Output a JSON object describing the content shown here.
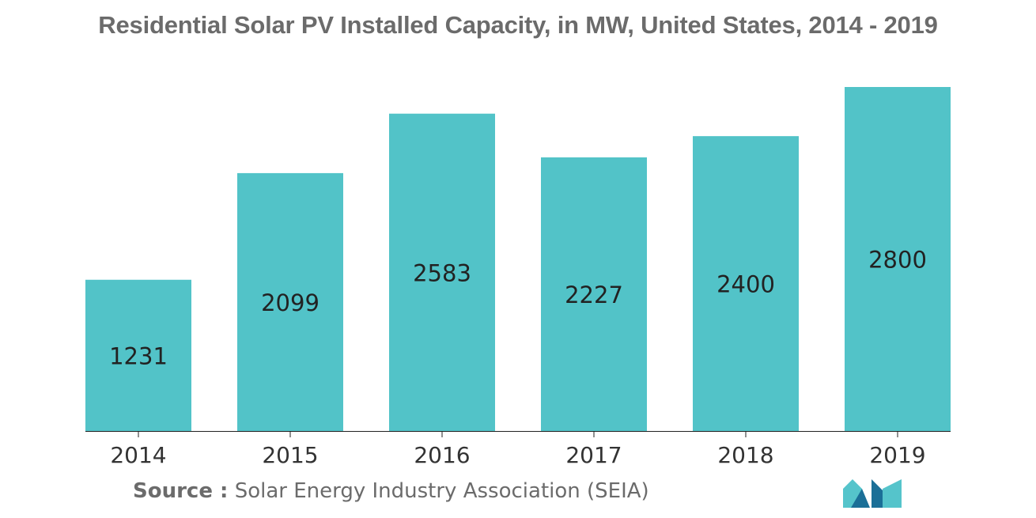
{
  "chart_data": {
    "type": "bar",
    "title": "Residential Solar PV Installed Capacity, in MW, United States, 2014 - 2019",
    "categories": [
      "2014",
      "2015",
      "2016",
      "2017",
      "2018",
      "2019"
    ],
    "values": [
      1231,
      2099,
      2583,
      2227,
      2400,
      2800
    ],
    "value_labels": [
      "1231",
      "2099",
      "2583",
      "2227",
      "2400",
      "2800"
    ],
    "xlabel": "",
    "ylabel": "",
    "ylim": [
      0,
      2800
    ],
    "grid": false,
    "legend": "none",
    "bar_color": "#52c3c8"
  },
  "source": {
    "label": "Source :",
    "text": "Solar Energy Industry Association (SEIA)"
  },
  "colors": {
    "title": "#6b6b6b",
    "axis": "#222222",
    "logo_dark": "#1b6f97",
    "logo_light": "#55c4cb"
  },
  "logo": {
    "icon": "brand-logo-icon"
  }
}
